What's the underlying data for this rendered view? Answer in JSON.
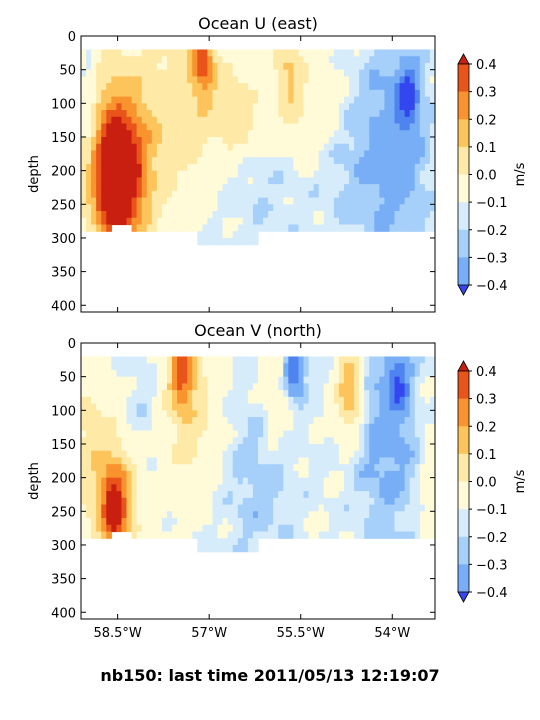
{
  "suptitle": "nb150: last time 2011/05/13 12:19:07",
  "colors": {
    "negative": [
      "#3346f0",
      "#4f84f0",
      "#78aef5",
      "#a6d0fa",
      "#d7ecfb"
    ],
    "positive": [
      "#fffbd9",
      "#ffe9a6",
      "#fcc45a",
      "#f8932e",
      "#e8541a",
      "#c91f10"
    ],
    "axis": "#000000",
    "background": "#ffffff"
  },
  "chart_data": [
    {
      "type": "heatmap",
      "title": "Ocean U (east)",
      "ylabel": "depth",
      "ylim": [
        410,
        0
      ],
      "yticks": [
        0,
        50,
        100,
        150,
        200,
        250,
        300,
        350,
        400
      ],
      "xlim": [
        -59.1,
        -53.3
      ],
      "xticks": [
        -58.5,
        -57,
        -55.5,
        -54
      ],
      "xticklabels": [
        "58.5°W",
        "57°W",
        "55.5°W",
        "54°W"
      ],
      "colorbar": {
        "label": "m/s",
        "ticks": [
          "0.4",
          "0.3",
          "0.2",
          "0.1",
          "0.0",
          "−0.1",
          "−0.2",
          "−0.3",
          "−0.4"
        ],
        "extend": "both"
      },
      "features": [
        {
          "x": -58.5,
          "z": 220,
          "sx": 0.3,
          "sz": 70,
          "a": 0.62
        },
        {
          "x": -58.5,
          "z": 150,
          "sx": 0.55,
          "sz": 95,
          "a": 0.25
        },
        {
          "x": -57.1,
          "z": 40,
          "sx": 0.12,
          "sz": 30,
          "a": 0.35
        },
        {
          "x": -57.2,
          "z": 90,
          "sx": 0.45,
          "sz": 110,
          "a": 0.16
        },
        {
          "x": -56.5,
          "z": 120,
          "sx": 0.25,
          "sz": 40,
          "a": 0.14
        },
        {
          "x": -55.7,
          "z": 60,
          "sx": 0.15,
          "sz": 50,
          "a": 0.2
        },
        {
          "x": -55.2,
          "z": 100,
          "sx": 0.4,
          "sz": 70,
          "a": 0.08
        },
        {
          "x": -58.95,
          "z": 130,
          "sx": 0.12,
          "sz": 90,
          "a": -0.16
        },
        {
          "x": -53.75,
          "z": 90,
          "sx": 0.12,
          "sz": 30,
          "a": -0.3
        },
        {
          "x": -53.9,
          "z": 160,
          "sx": 0.35,
          "sz": 120,
          "a": -0.14
        },
        {
          "x": -54.6,
          "z": 170,
          "sx": 0.4,
          "sz": 100,
          "a": -0.08
        },
        {
          "x": -56.4,
          "z": 230,
          "sx": 0.8,
          "sz": 60,
          "a": -0.05
        }
      ]
    },
    {
      "type": "heatmap",
      "title": "Ocean V (north)",
      "ylabel": "depth",
      "ylim": [
        410,
        0
      ],
      "yticks": [
        0,
        50,
        100,
        150,
        200,
        250,
        300,
        350,
        400
      ],
      "xlim": [
        -59.1,
        -53.3
      ],
      "xticks": [
        -58.5,
        -57,
        -55.5,
        -54
      ],
      "xticklabels": [
        "58.5°W",
        "57°W",
        "55.5°W",
        "54°W"
      ],
      "colorbar": {
        "label": "m/s",
        "ticks": [
          "0.4",
          "0.3",
          "0.2",
          "0.1",
          "0.0",
          "−0.1",
          "−0.2",
          "−0.3",
          "−0.4"
        ],
        "extend": "both"
      },
      "features": [
        {
          "x": -58.55,
          "z": 250,
          "sx": 0.15,
          "sz": 45,
          "a": 0.45
        },
        {
          "x": -58.6,
          "z": 220,
          "sx": 0.35,
          "sz": 70,
          "a": 0.2
        },
        {
          "x": -57.45,
          "z": 45,
          "sx": 0.15,
          "sz": 40,
          "a": 0.35
        },
        {
          "x": -57.3,
          "z": 110,
          "sx": 0.35,
          "sz": 90,
          "a": 0.14
        },
        {
          "x": -55.9,
          "z": 80,
          "sx": 0.2,
          "sz": 60,
          "a": 0.1
        },
        {
          "x": -54.7,
          "z": 70,
          "sx": 0.15,
          "sz": 50,
          "a": 0.3
        },
        {
          "x": -59.0,
          "z": 120,
          "sx": 0.2,
          "sz": 60,
          "a": 0.1
        },
        {
          "x": -53.4,
          "z": 220,
          "sx": 0.1,
          "sz": 80,
          "a": 0.1
        },
        {
          "x": -55.6,
          "z": 40,
          "sx": 0.12,
          "sz": 30,
          "a": -0.3
        },
        {
          "x": -53.9,
          "z": 60,
          "sx": 0.12,
          "sz": 30,
          "a": -0.25
        },
        {
          "x": -54.1,
          "z": 140,
          "sx": 0.4,
          "sz": 120,
          "a": -0.13
        },
        {
          "x": -56.2,
          "z": 200,
          "sx": 0.45,
          "sz": 100,
          "a": -0.08
        },
        {
          "x": -58.1,
          "z": 110,
          "sx": 0.25,
          "sz": 70,
          "a": -0.06
        }
      ]
    }
  ]
}
